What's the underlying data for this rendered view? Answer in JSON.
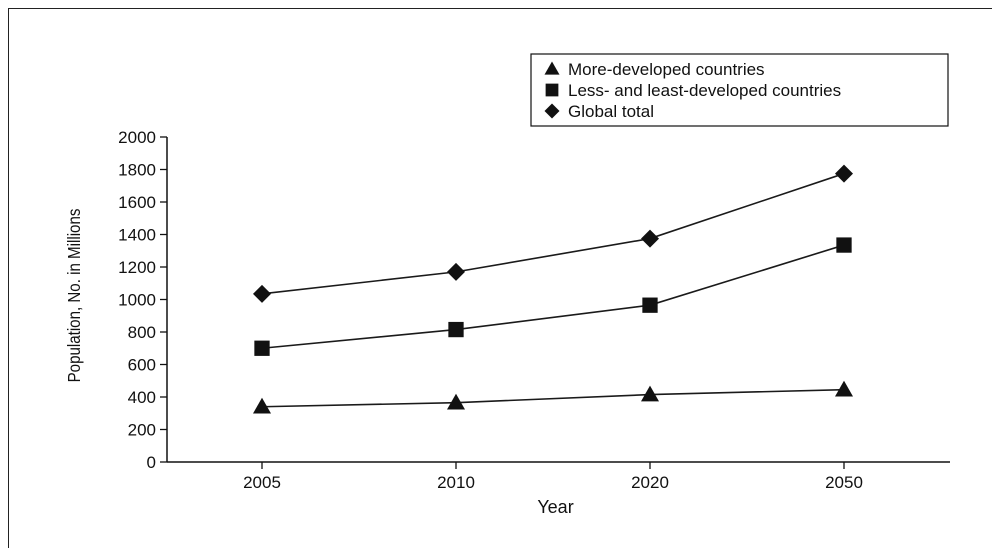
{
  "chart_data": {
    "type": "line",
    "categories": [
      "2005",
      "2010",
      "2020",
      "2050"
    ],
    "xlabel": "Year",
    "ylabel": "Population, No. in Millions",
    "ylim": [
      0,
      2000
    ],
    "yticks": [
      0,
      200,
      400,
      600,
      800,
      1000,
      1200,
      1400,
      1600,
      1800,
      2000
    ],
    "grid": false,
    "legend_position": "top-right",
    "series": [
      {
        "name": "More-developed countries",
        "marker": "triangle",
        "values": [
          340,
          365,
          415,
          445
        ]
      },
      {
        "name": "Less- and least-developed countries",
        "marker": "square",
        "values": [
          700,
          815,
          965,
          1335
        ]
      },
      {
        "name": "Global total",
        "marker": "diamond",
        "values": [
          1035,
          1170,
          1375,
          1775
        ]
      }
    ],
    "colors": {
      "line": "#1a1a1a",
      "marker": "#111111"
    }
  }
}
